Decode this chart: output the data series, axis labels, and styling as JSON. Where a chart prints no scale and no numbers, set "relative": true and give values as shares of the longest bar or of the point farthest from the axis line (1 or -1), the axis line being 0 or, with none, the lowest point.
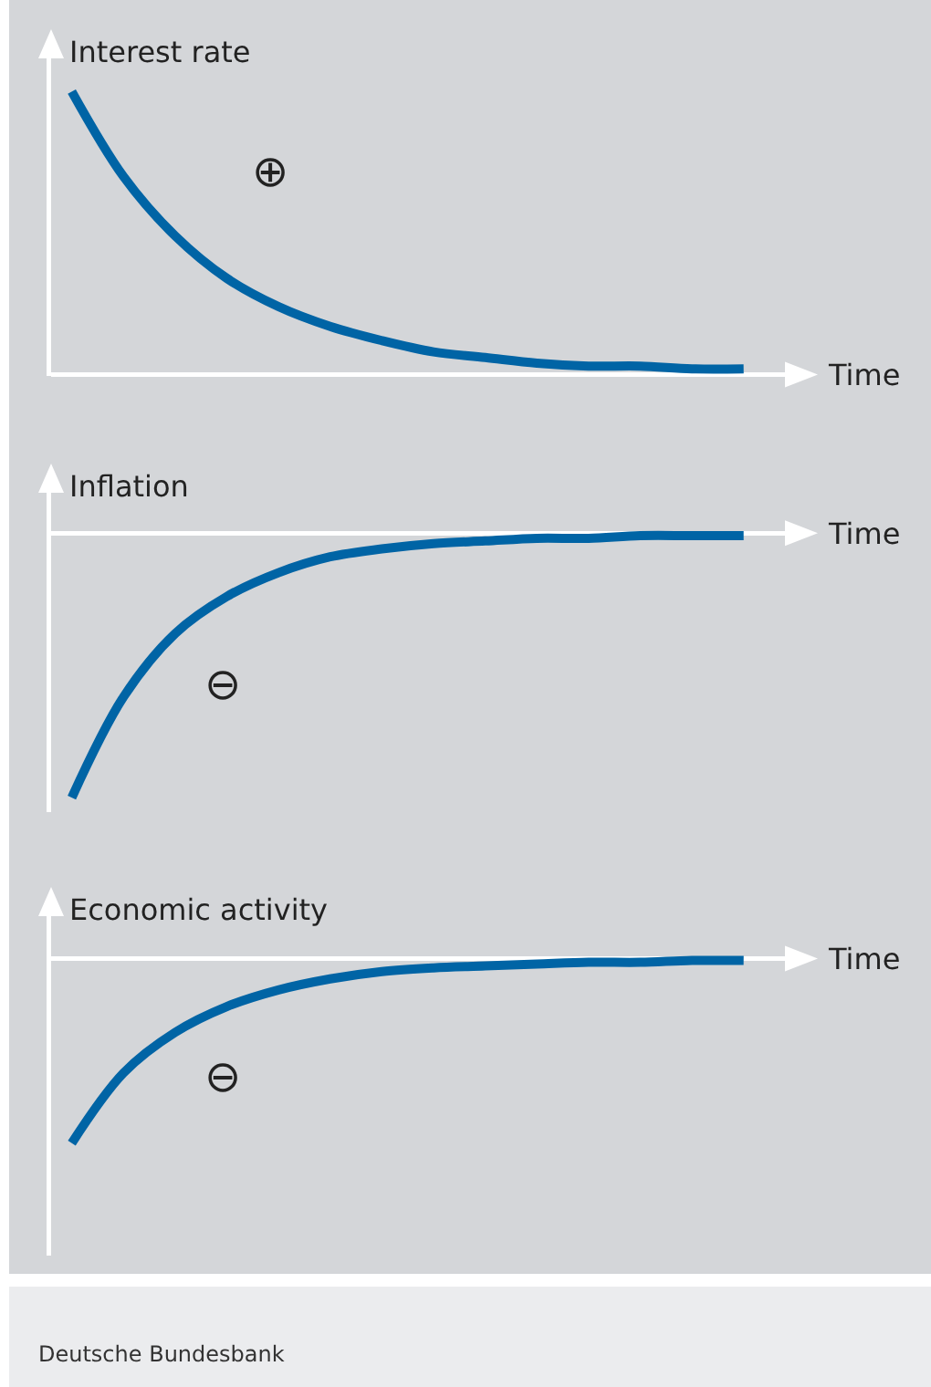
{
  "chart_data": [
    {
      "type": "line",
      "relative": true,
      "ylabel": "Interest rate",
      "xlabel": "Time",
      "categories": [
        null,
        null,
        null,
        null,
        null,
        null,
        null,
        null,
        null,
        null,
        null,
        null,
        null,
        null
      ],
      "series": [
        {
          "color": "#0064a5",
          "values": [
            1,
            0.7,
            0.49,
            0.34,
            0.24,
            0.17,
            0.12,
            0.08,
            0.06,
            0.04,
            0.03,
            0.03,
            0.02,
            0.02
          ]
        }
      ],
      "annotations": [
        "⊕"
      ]
    },
    {
      "type": "line",
      "relative": true,
      "ylabel": "Inflation",
      "xlabel": "Time",
      "categories": [
        null,
        null,
        null,
        null,
        null,
        null,
        null,
        null,
        null,
        null,
        null,
        null,
        null,
        null
      ],
      "series": [
        {
          "color": "#0064a5",
          "values": [
            -1,
            -0.62,
            -0.38,
            -0.24,
            -0.15,
            -0.09,
            -0.06,
            -0.04,
            -0.03,
            -0.02,
            -0.02,
            -0.01,
            -0.01,
            -0.01
          ]
        }
      ],
      "annotations": [
        "⊖"
      ]
    },
    {
      "type": "line",
      "relative": true,
      "ylabel": "Economic activity",
      "xlabel": "Time",
      "categories": [
        null,
        null,
        null,
        null,
        null,
        null,
        null,
        null,
        null,
        null,
        null,
        null,
        null,
        null
      ],
      "series": [
        {
          "color": "#0064a5",
          "values": [
            -1,
            -0.62,
            -0.4,
            -0.26,
            -0.17,
            -0.11,
            -0.07,
            -0.05,
            -0.04,
            -0.03,
            -0.02,
            -0.02,
            -0.01,
            -0.01
          ]
        }
      ],
      "annotations": [
        "⊖",
        "Deutsche Bundesbank"
      ]
    }
  ]
}
